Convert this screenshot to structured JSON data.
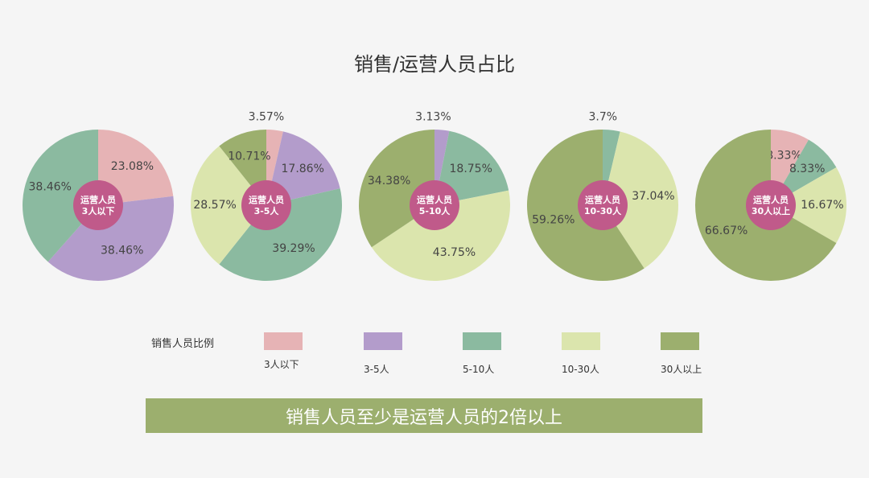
{
  "title": "销售/运营人员占比",
  "legend_title": "销售人员比例",
  "legend": [
    {
      "label": "3人以下",
      "color": "#e6b3b5"
    },
    {
      "label": "3-5人",
      "color": "#b39ccb"
    },
    {
      "label": "5-10人",
      "color": "#8bbaa0"
    },
    {
      "label": "10-30人",
      "color": "#dbe5ad"
    },
    {
      "label": "30人以上",
      "color": "#9caf6e"
    }
  ],
  "center_color": "#c05a8a",
  "banner": "销售人员至少是运营人员的2倍以上",
  "chart_data": [
    {
      "type": "pie",
      "center_label": [
        "运营人员",
        "3人以下"
      ],
      "slices": [
        {
          "category": "3人以下",
          "value": 23.08,
          "label": "23.08%"
        },
        {
          "category": "3-5人",
          "value": 38.46,
          "label": "38.46%"
        },
        {
          "category": "5-10人",
          "value": 38.46,
          "label": "38.46%"
        }
      ]
    },
    {
      "type": "pie",
      "center_label": [
        "运营人员",
        "3-5人"
      ],
      "slices": [
        {
          "category": "3人以下",
          "value": 3.57,
          "label": "3.57%"
        },
        {
          "category": "3-5人",
          "value": 17.86,
          "label": "17.86%"
        },
        {
          "category": "5-10人",
          "value": 39.29,
          "label": "39.29%"
        },
        {
          "category": "10-30人",
          "value": 28.57,
          "label": "28.57%"
        },
        {
          "category": "30人以上",
          "value": 10.71,
          "label": "10.71%"
        }
      ]
    },
    {
      "type": "pie",
      "center_label": [
        "运营人员",
        "5-10人"
      ],
      "slices": [
        {
          "category": "3-5人",
          "value": 3.13,
          "label": "3.13%"
        },
        {
          "category": "5-10人",
          "value": 18.75,
          "label": "18.75%"
        },
        {
          "category": "10-30人",
          "value": 43.75,
          "label": "43.75%"
        },
        {
          "category": "30人以上",
          "value": 34.38,
          "label": "34.38%"
        }
      ]
    },
    {
      "type": "pie",
      "center_label": [
        "运营人员",
        "10-30人"
      ],
      "slices": [
        {
          "category": "5-10人",
          "value": 3.7,
          "label": "3.7%"
        },
        {
          "category": "10-30人",
          "value": 37.04,
          "label": "37.04%"
        },
        {
          "category": "30人以上",
          "value": 59.26,
          "label": "59.26%"
        }
      ]
    },
    {
      "type": "pie",
      "center_label": [
        "运营人员",
        "30人以上"
      ],
      "slices": [
        {
          "category": "3人以下",
          "value": 8.33,
          "label": "8.33%"
        },
        {
          "category": "5-10人",
          "value": 8.33,
          "label": "8.33%"
        },
        {
          "category": "10-30人",
          "value": 16.67,
          "label": "16.67%"
        },
        {
          "category": "30人以上",
          "value": 66.67,
          "label": "66.67%"
        }
      ]
    }
  ]
}
